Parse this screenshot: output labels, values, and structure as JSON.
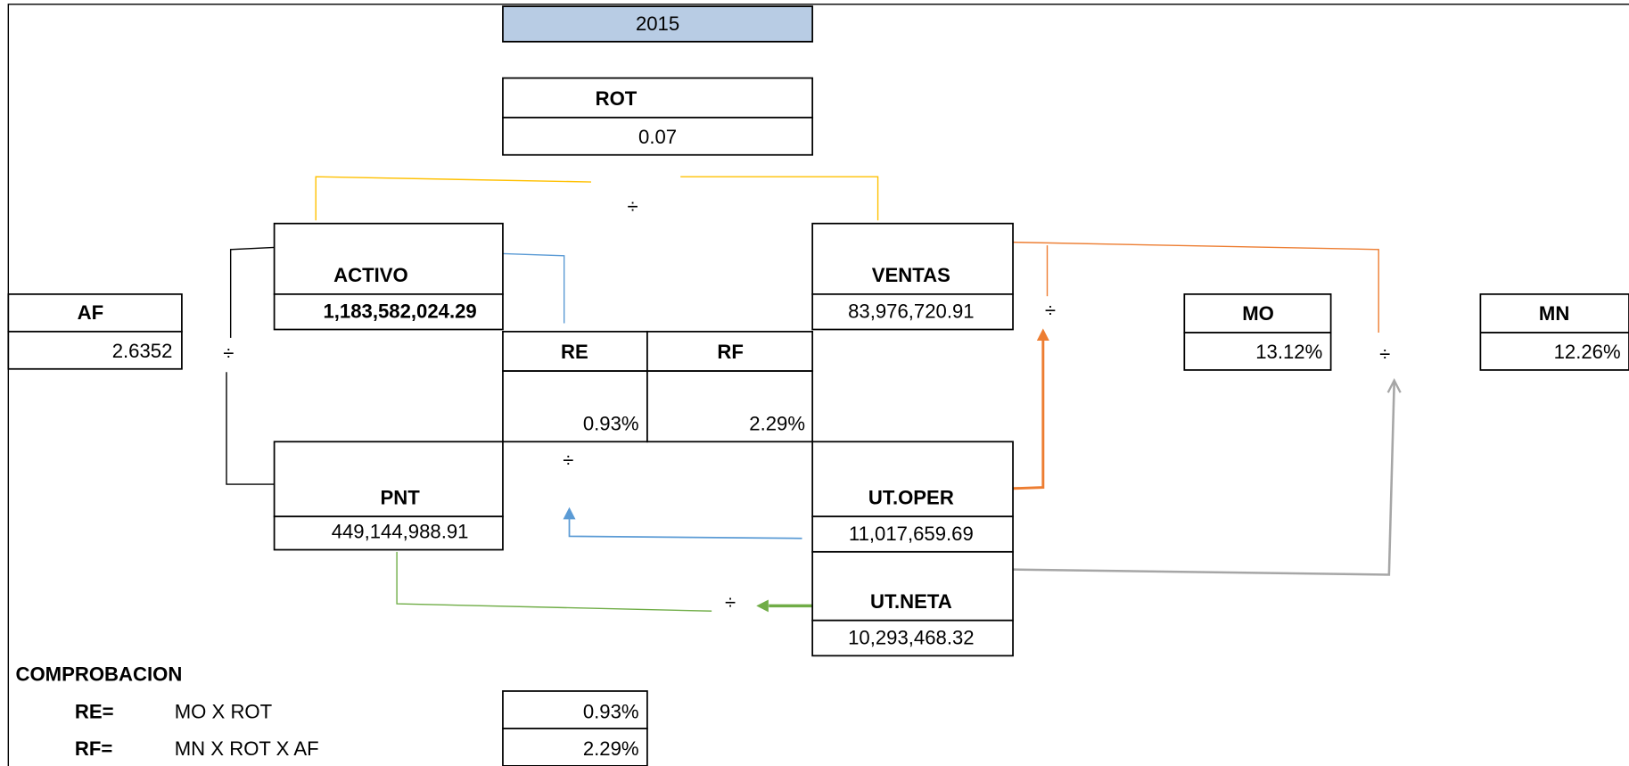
{
  "year": "2015",
  "nodes": [
    {
      "label": "ROT",
      "value": "0.07"
    },
    {
      "label": "ACTIVO",
      "value": "1,183,582,024.29"
    },
    {
      "label": "VENTAS",
      "value": "83,976,720.91"
    },
    {
      "label": "AF",
      "value": "2.6352"
    },
    {
      "label": "MO",
      "value": "13.12%"
    },
    {
      "label": "MN",
      "value": "12.26%"
    },
    {
      "label": "RE",
      "value": "0.93%"
    },
    {
      "label": "RF",
      "value": "2.29%"
    },
    {
      "label": "PNT",
      "value": "449,144,988.91"
    },
    {
      "label": "UT.OPER",
      "value": "11,017,659.69"
    },
    {
      "label": "UT.NETA",
      "value": "10,293,468.32"
    }
  ],
  "division_symbol": "÷",
  "check": {
    "title": "COMPROBACION",
    "rows": [
      {
        "label": "RE=",
        "formula": "MO X ROT",
        "value": "0.93%"
      },
      {
        "label": "RF=",
        "formula": "MN X ROT X AF",
        "value": "2.29%"
      }
    ]
  }
}
